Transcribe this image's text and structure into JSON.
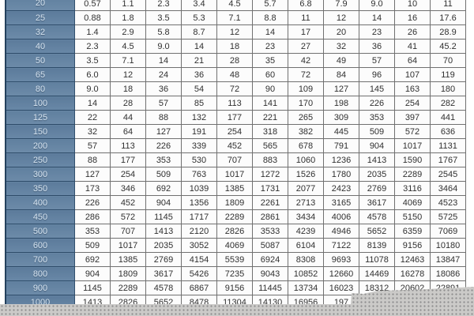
{
  "chart_data": {
    "type": "table",
    "row_header_column": "pipe-diameter-dn",
    "row_labels": [
      "20",
      "25",
      "32",
      "40",
      "50",
      "65",
      "80",
      "100",
      "125",
      "150",
      "200",
      "250",
      "300",
      "350",
      "400",
      "450",
      "500",
      "600",
      "700",
      "800",
      "900",
      "1000"
    ],
    "rows": [
      [
        "0.57",
        "1.1",
        "2.3",
        "3.4",
        "4.5",
        "5.7",
        "6.8",
        "7.9",
        "9.0",
        "10",
        "11"
      ],
      [
        "0.88",
        "1.8",
        "3.5",
        "5.3",
        "7.1",
        "8.8",
        "11",
        "12",
        "14",
        "16",
        "17.6"
      ],
      [
        "1.4",
        "2.9",
        "5.8",
        "8.7",
        "12",
        "14",
        "17",
        "20",
        "23",
        "26",
        "28.9"
      ],
      [
        "2.3",
        "4.5",
        "9.0",
        "14",
        "18",
        "23",
        "27",
        "32",
        "36",
        "41",
        "45.2"
      ],
      [
        "3.5",
        "7.1",
        "14",
        "21",
        "28",
        "35",
        "42",
        "49",
        "57",
        "64",
        "70"
      ],
      [
        "6.0",
        "12",
        "24",
        "36",
        "48",
        "60",
        "72",
        "84",
        "96",
        "107",
        "119"
      ],
      [
        "9.0",
        "18",
        "36",
        "54",
        "72",
        "90",
        "109",
        "127",
        "145",
        "163",
        "180"
      ],
      [
        "14",
        "28",
        "57",
        "85",
        "113",
        "141",
        "170",
        "198",
        "226",
        "254",
        "282"
      ],
      [
        "22",
        "44",
        "88",
        "132",
        "177",
        "221",
        "265",
        "309",
        "353",
        "397",
        "441"
      ],
      [
        "32",
        "64",
        "127",
        "191",
        "254",
        "318",
        "382",
        "445",
        "509",
        "572",
        "636"
      ],
      [
        "57",
        "113",
        "226",
        "339",
        "452",
        "565",
        "678",
        "791",
        "904",
        "1017",
        "1131"
      ],
      [
        "88",
        "177",
        "353",
        "530",
        "707",
        "883",
        "1060",
        "1236",
        "1413",
        "1590",
        "1767"
      ],
      [
        "127",
        "254",
        "509",
        "763",
        "1017",
        "1272",
        "1526",
        "1780",
        "2035",
        "2289",
        "2545"
      ],
      [
        "173",
        "346",
        "692",
        "1039",
        "1385",
        "1731",
        "2077",
        "2423",
        "2769",
        "3116",
        "3464"
      ],
      [
        "226",
        "452",
        "904",
        "1356",
        "1809",
        "2261",
        "2713",
        "3165",
        "3617",
        "4069",
        "4523"
      ],
      [
        "286",
        "572",
        "1145",
        "1717",
        "2289",
        "2861",
        "3434",
        "4006",
        "4578",
        "5150",
        "5725"
      ],
      [
        "353",
        "707",
        "1413",
        "2120",
        "2826",
        "3533",
        "4239",
        "4946",
        "5652",
        "6359",
        "7069"
      ],
      [
        "509",
        "1017",
        "2035",
        "3052",
        "4069",
        "5087",
        "6104",
        "7122",
        "8139",
        "9156",
        "10180"
      ],
      [
        "692",
        "1385",
        "2769",
        "4154",
        "5539",
        "6924",
        "8308",
        "9693",
        "11078",
        "12463",
        "13847"
      ],
      [
        "904",
        "1809",
        "3617",
        "5426",
        "7235",
        "9043",
        "10852",
        "12660",
        "14469",
        "16278",
        "18086"
      ],
      [
        "1145",
        "2289",
        "4578",
        "6867",
        "9156",
        "11445",
        "13734",
        "16023",
        "18312",
        "20602",
        "22891"
      ],
      [
        "1413",
        "2826",
        "5652",
        "8478",
        "11304",
        "14130",
        "16956",
        "197",
        "",
        "",
        ""
      ]
    ],
    "layout_hints": {
      "header_row_visible": false,
      "first_row_clipped_top": true,
      "last_row_clipped_bottom": true,
      "grid": true
    }
  },
  "colors": {
    "row_header_blue": "#64829f",
    "row_header_text": "#d6e4f1",
    "row_header_border": "#2e4c6a",
    "grid_line": "#707070",
    "cell_background": "#fcfcfc",
    "cell_text": "#303030",
    "pattern_background": "#cbcac8",
    "pattern_dot": "#8f8f8f"
  }
}
